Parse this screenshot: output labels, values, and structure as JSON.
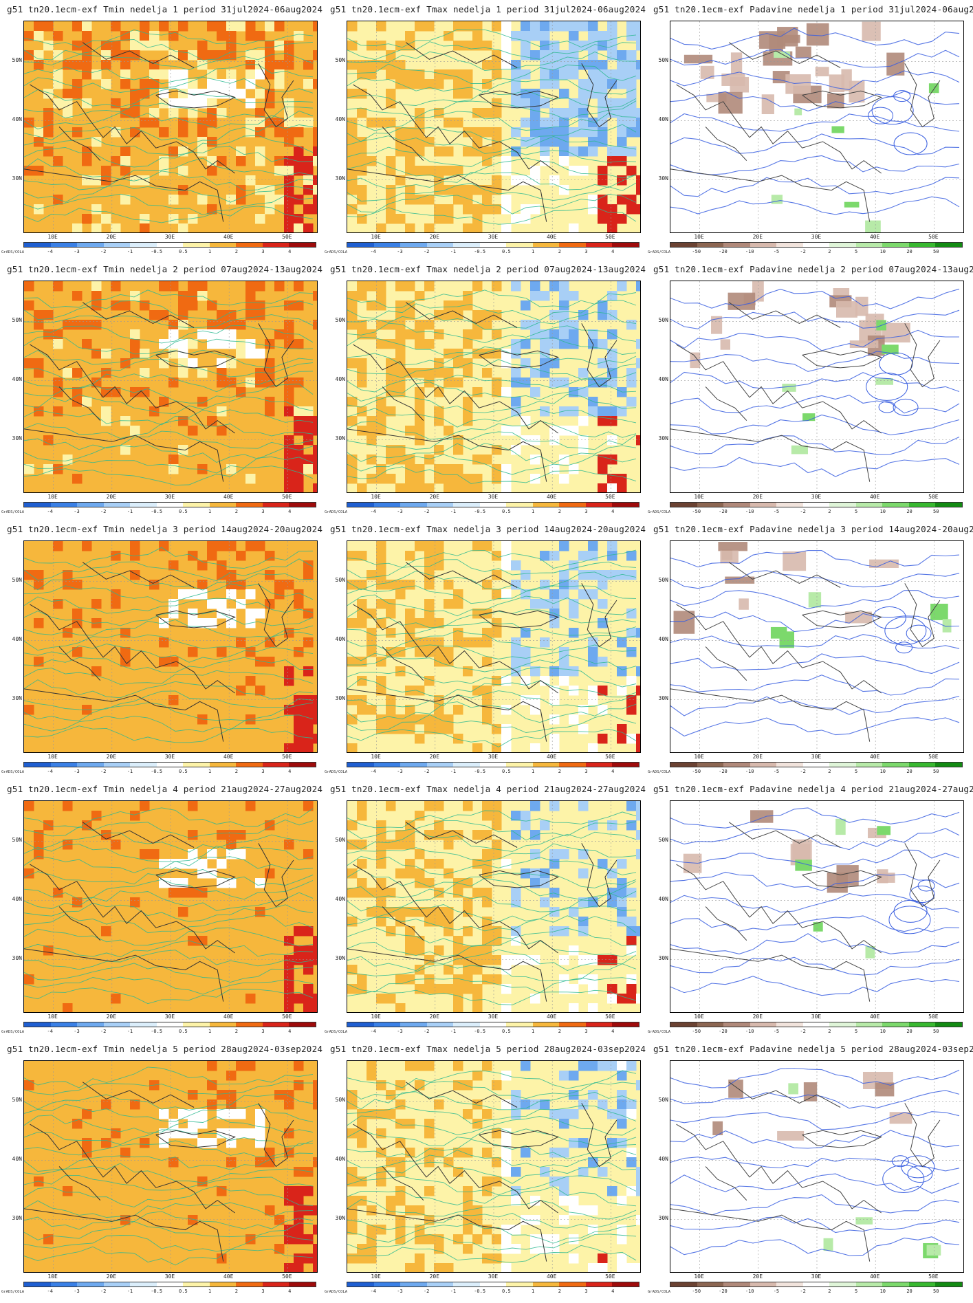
{
  "prefix": "g51  tn20.1ecm-exf",
  "periods": [
    {
      "week": "nedelja 1",
      "range": "period 31jul2024-06aug2024"
    },
    {
      "week": "nedelja 2",
      "range": "period 07aug2024-13aug2024"
    },
    {
      "week": "nedelja 3",
      "range": "period 14aug2024-20aug2024"
    },
    {
      "week": "nedelja 4",
      "range": "period 21aug2024-27aug2024"
    },
    {
      "week": "nedelja 5",
      "range": "period 28aug2024-03sep2024"
    }
  ],
  "variables": [
    "Tmin",
    "Tmax",
    "Padavine"
  ],
  "lat_labels": [
    "50N",
    "40N",
    "30N"
  ],
  "lon_labels": [
    "10E",
    "20E",
    "30E",
    "40E",
    "50E"
  ],
  "colorbar_credit": "GrADS/COLA",
  "temp_scale": {
    "labels": [
      "-4",
      "-3",
      "-2",
      "-1",
      "-0.5",
      "0.5",
      "1",
      "2",
      "3",
      "4"
    ],
    "colors": [
      "#1f5fd1",
      "#3a80e6",
      "#6ea9ef",
      "#a8cff6",
      "#dbeefb",
      "#ffffff",
      "#fdf3a8",
      "#f6b73c",
      "#f06a12",
      "#d9241a",
      "#9e0b0b"
    ]
  },
  "precip_scale": {
    "labels": [
      "-50",
      "-20",
      "-10",
      "-5",
      "-2",
      "2",
      "5",
      "10",
      "20",
      "50"
    ],
    "colors": [
      "#6b4232",
      "#8c6652",
      "#b0897a",
      "#d7b9ad",
      "#f1e3dc",
      "#ffffff",
      "#dff5d8",
      "#b7eaa8",
      "#7cd96c",
      "#38b830",
      "#138b13"
    ]
  },
  "panels": [
    {
      "row": 0,
      "var": "Tmin",
      "anomaly": {
        "warm": 0.72,
        "hot": 0.28,
        "cold": 0.08,
        "fill": "warm"
      }
    },
    {
      "row": 0,
      "var": "Tmax",
      "anomaly": {
        "warm": 0.45,
        "hot": 0.1,
        "cold": 0.4,
        "fill": "mixed"
      }
    },
    {
      "row": 0,
      "var": "Padavine",
      "anomaly": {
        "dry": 0.35,
        "wet": 0.08
      }
    },
    {
      "row": 1,
      "var": "Tmin",
      "anomaly": {
        "warm": 0.85,
        "hot": 0.3,
        "cold": 0.05,
        "fill": "warm"
      }
    },
    {
      "row": 1,
      "var": "Tmax",
      "anomaly": {
        "warm": 0.45,
        "hot": 0.05,
        "cold": 0.22,
        "fill": "mixed"
      }
    },
    {
      "row": 1,
      "var": "Padavine",
      "anomaly": {
        "dry": 0.18,
        "wet": 0.06
      }
    },
    {
      "row": 2,
      "var": "Tmin",
      "anomaly": {
        "warm": 0.95,
        "hot": 0.18,
        "cold": 0.0,
        "fill": "warm"
      }
    },
    {
      "row": 2,
      "var": "Tmax",
      "anomaly": {
        "warm": 0.4,
        "hot": 0.04,
        "cold": 0.15,
        "fill": "mixed"
      }
    },
    {
      "row": 2,
      "var": "Padavine",
      "anomaly": {
        "dry": 0.08,
        "wet": 0.05
      }
    },
    {
      "row": 3,
      "var": "Tmin",
      "anomaly": {
        "warm": 0.98,
        "hot": 0.12,
        "cold": 0.0,
        "fill": "warm"
      }
    },
    {
      "row": 3,
      "var": "Tmax",
      "anomaly": {
        "warm": 0.35,
        "hot": 0.03,
        "cold": 0.15,
        "fill": "mixed"
      }
    },
    {
      "row": 3,
      "var": "Padavine",
      "anomaly": {
        "dry": 0.08,
        "wet": 0.04
      }
    },
    {
      "row": 4,
      "var": "Tmin",
      "anomaly": {
        "warm": 0.98,
        "hot": 0.12,
        "cold": 0.0,
        "fill": "warm"
      }
    },
    {
      "row": 4,
      "var": "Tmax",
      "anomaly": {
        "warm": 0.3,
        "hot": 0.01,
        "cold": 0.12,
        "fill": "mixed"
      }
    },
    {
      "row": 4,
      "var": "Padavine",
      "anomaly": {
        "dry": 0.05,
        "wet": 0.05
      }
    }
  ]
}
